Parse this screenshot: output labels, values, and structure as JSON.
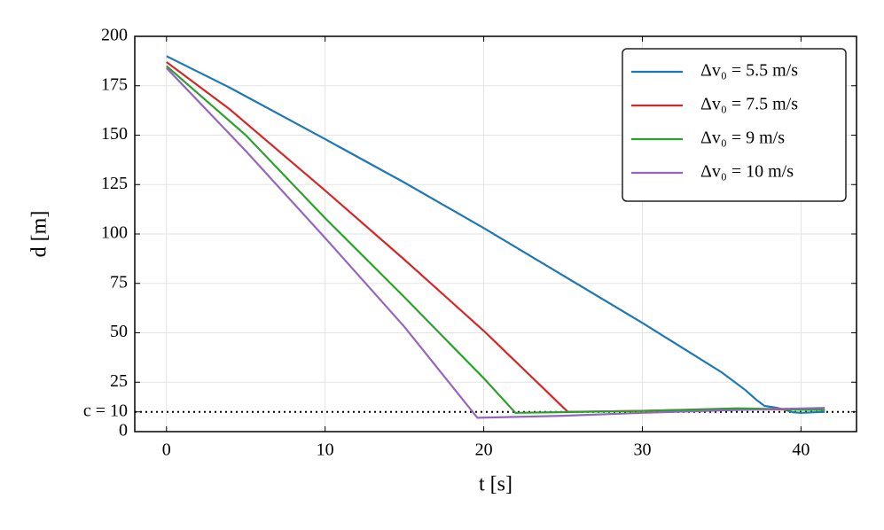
{
  "chart_data": {
    "type": "line",
    "xlabel": "t [s]",
    "ylabel": "d [m]",
    "xlim": [
      -2,
      43.5
    ],
    "ylim": [
      0,
      200
    ],
    "xticks": [
      0,
      10,
      20,
      30,
      40
    ],
    "yticks": [
      0,
      {
        "value": 10,
        "label": "c = 10"
      },
      25,
      50,
      75,
      100,
      125,
      150,
      175,
      200
    ],
    "grid": true,
    "hline": {
      "value": 10,
      "color": "#000000",
      "style": "dotted"
    },
    "legend": "upper right",
    "series": [
      {
        "name": "Δv₀ = 5.5 m/s",
        "color": "#1f77b4",
        "x": [
          0,
          4,
          10,
          15,
          20,
          25,
          30,
          35,
          36.5,
          37.2,
          37.7,
          38.5,
          39,
          39.5,
          40,
          41.5
        ],
        "values": [
          190,
          174,
          148,
          126,
          103,
          79,
          55,
          30,
          21,
          16,
          13,
          12,
          11,
          9.8,
          9.5,
          10
        ]
      },
      {
        "name": "Δv₀ = 7.5 m/s",
        "color": "#d62728",
        "x": [
          0,
          4,
          10,
          15,
          20,
          25.3,
          30,
          36,
          41.5
        ],
        "values": [
          187,
          163,
          122,
          87,
          51,
          10,
          10.5,
          11.5,
          11
        ]
      },
      {
        "name": "Δv₀ = 9 m/s",
        "color": "#2ca02c",
        "x": [
          0,
          5,
          10,
          15,
          20,
          22,
          30,
          36,
          41.5
        ],
        "values": [
          185,
          150,
          108,
          68,
          27,
          9.5,
          10.5,
          11.8,
          11
        ]
      },
      {
        "name": "Δv₀ = 10 m/s",
        "color": "#9467bd",
        "x": [
          0,
          5,
          10,
          15,
          19.6,
          25,
          30,
          36,
          41.5
        ],
        "values": [
          184,
          142,
          98,
          53,
          7,
          8,
          9.5,
          11,
          12
        ]
      }
    ]
  }
}
